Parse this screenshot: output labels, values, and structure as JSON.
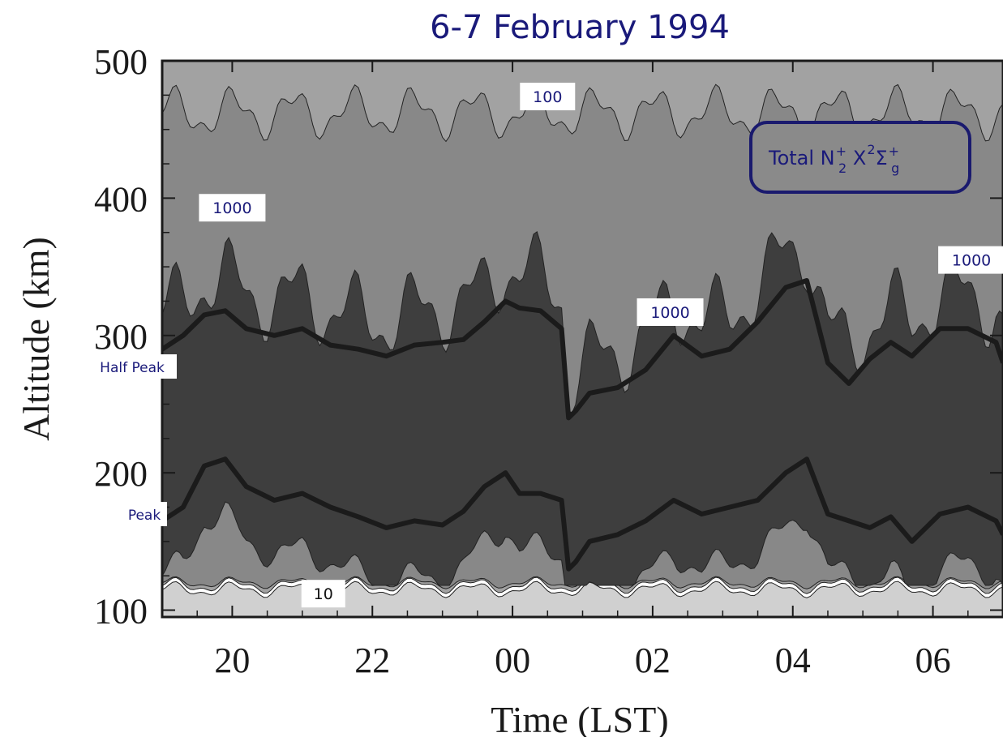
{
  "chart_data": {
    "type": "area",
    "title": "6-7 February 1994",
    "xlabel": "Time (LST)",
    "ylabel": "Altitude (km)",
    "x_ticks": [
      "20",
      "22",
      "00",
      "02",
      "04",
      "06"
    ],
    "y_ticks": [
      "100",
      "200",
      "300",
      "400",
      "500"
    ],
    "xlim_hours": [
      19.0,
      31.0
    ],
    "ylim": [
      95,
      500
    ],
    "legend": {
      "prefix": "Total N",
      "sup1": "+",
      "sub1": "2",
      "mid": " X",
      "sup2": "2",
      "sigma": "Σ",
      "sup3": "+",
      "sub3": "g"
    },
    "contour_labels": [
      {
        "text": "100",
        "x": 24.5,
        "y": 474
      },
      {
        "text": "1000",
        "x": 20.0,
        "y": 393
      },
      {
        "text": "1000",
        "x": 26.25,
        "y": 317
      },
      {
        "text": "1000",
        "x": 30.55,
        "y": 355
      },
      {
        "text": "10",
        "x": 21.3,
        "y": 112
      }
    ],
    "side_labels": {
      "half_peak": "Half Peak",
      "peak": "Peak"
    },
    "colors": {
      "background": "#ffffff",
      "level_10": "#d0d0d0",
      "level_100": "#a2a2a2",
      "level_1000": "#888888",
      "level_peak": "#3e3e3e",
      "curve": "#1b1b1b",
      "label_text": "#1a1a7a"
    },
    "series": [
      {
        "name": "Half Peak",
        "x": [
          19.0,
          19.3,
          19.6,
          19.9,
          20.2,
          20.6,
          21.0,
          21.4,
          21.8,
          22.2,
          22.6,
          23.0,
          23.3,
          23.6,
          23.9,
          24.1,
          24.4,
          24.7,
          24.8,
          24.9,
          25.1,
          25.5,
          25.9,
          26.3,
          26.7,
          27.1,
          27.5,
          27.9,
          28.2,
          28.5,
          28.8,
          29.1,
          29.4,
          29.7,
          30.1,
          30.5,
          30.9,
          31.0
        ],
        "y": [
          290,
          300,
          315,
          318,
          305,
          300,
          305,
          293,
          290,
          285,
          293,
          295,
          297,
          310,
          325,
          320,
          318,
          305,
          240,
          245,
          258,
          262,
          275,
          300,
          285,
          290,
          310,
          335,
          340,
          280,
          265,
          283,
          295,
          285,
          305,
          305,
          295,
          280
        ]
      },
      {
        "name": "Peak",
        "x": [
          19.0,
          19.3,
          19.6,
          19.9,
          20.2,
          20.6,
          21.0,
          21.4,
          21.8,
          22.2,
          22.6,
          23.0,
          23.3,
          23.6,
          23.9,
          24.1,
          24.4,
          24.7,
          24.8,
          24.9,
          25.1,
          25.5,
          25.9,
          26.3,
          26.7,
          27.1,
          27.5,
          27.9,
          28.2,
          28.5,
          28.8,
          29.1,
          29.4,
          29.7,
          30.1,
          30.5,
          30.9,
          31.0
        ],
        "y": [
          165,
          175,
          205,
          210,
          190,
          180,
          185,
          175,
          168,
          160,
          165,
          162,
          172,
          190,
          200,
          185,
          185,
          180,
          130,
          135,
          150,
          155,
          165,
          180,
          170,
          175,
          180,
          200,
          210,
          170,
          165,
          160,
          168,
          150,
          170,
          175,
          165,
          155
        ]
      }
    ]
  }
}
